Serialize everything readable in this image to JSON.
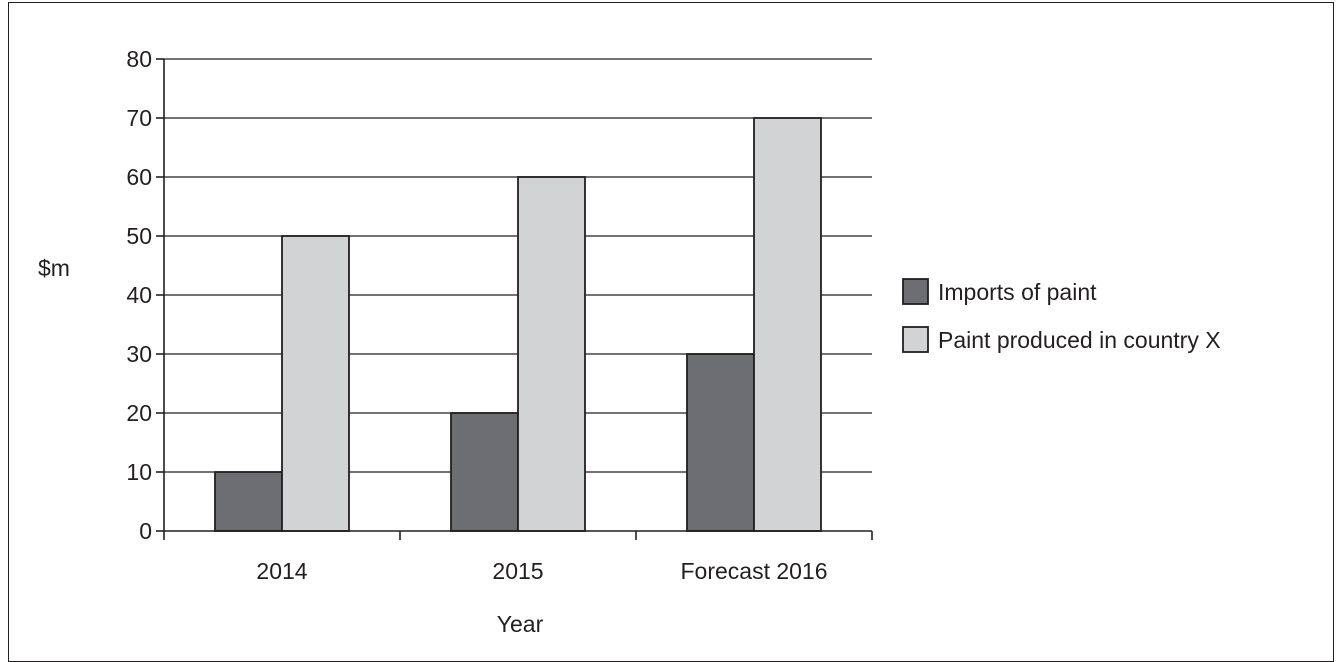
{
  "chart_data": {
    "type": "bar",
    "title": "",
    "xlabel": "Year",
    "ylabel": "$m",
    "categories": [
      "2014",
      "2015",
      "Forecast 2016"
    ],
    "series": [
      {
        "name": "Imports of paint",
        "color": "#6d6e71",
        "values": [
          10,
          20,
          30
        ]
      },
      {
        "name": "Paint produced in country X",
        "color": "#d1d3d4",
        "values": [
          50,
          60,
          70
        ]
      }
    ],
    "ylim": [
      0,
      80
    ],
    "yticks": [
      0,
      10,
      20,
      30,
      40,
      50,
      60,
      70,
      80
    ],
    "grid": true,
    "legend_position": "right",
    "colors": {
      "axis": "#231f20",
      "grid": "#231f20"
    }
  }
}
